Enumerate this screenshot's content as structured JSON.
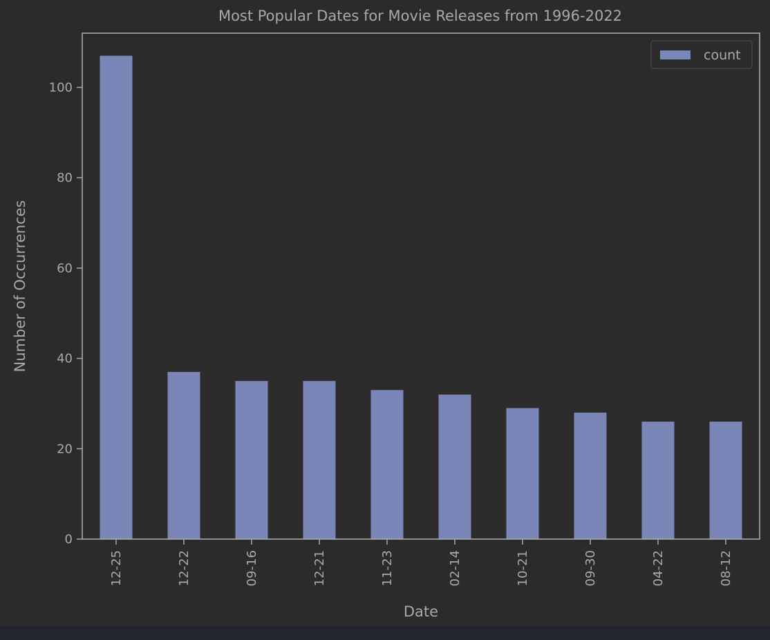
{
  "colors": {
    "background": "#2b2b2b",
    "bar": "#7a86b8",
    "axis": "#a9a9a9",
    "text": "#a9a9a9"
  },
  "chart_data": {
    "type": "bar",
    "title": "Most Popular Dates for Movie Releases from 1996-2022",
    "xlabel": "Date",
    "ylabel": "Number of Occurrences",
    "categories": [
      "12-25",
      "12-22",
      "09-16",
      "12-21",
      "11-23",
      "02-14",
      "10-21",
      "09-30",
      "04-22",
      "08-12"
    ],
    "series": [
      {
        "name": "count",
        "values": [
          107,
          37,
          35,
          35,
          33,
          32,
          29,
          28,
          26,
          26
        ]
      }
    ],
    "ylim": [
      0,
      112
    ],
    "yticks": [
      0,
      20,
      40,
      60,
      80,
      100
    ],
    "grid": false,
    "legend_position": "top-right",
    "tick_label_rotation": "vertical"
  }
}
